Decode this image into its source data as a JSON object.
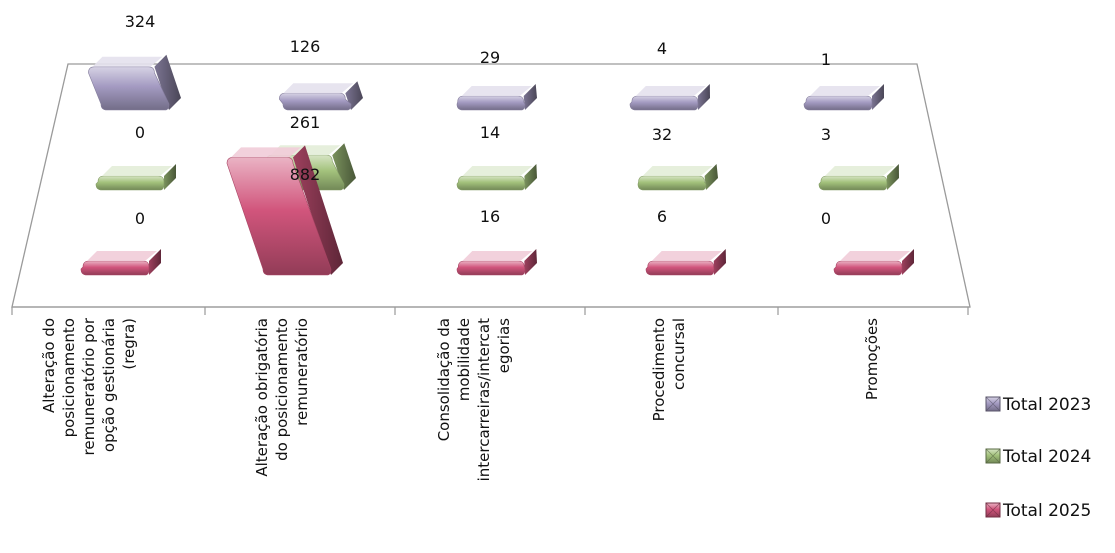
{
  "chart_data": {
    "type": "bar",
    "categories": [
      [
        "Alteração do",
        "posicionamento",
        "remuneratório por",
        "opção gestionária",
        "(regra)"
      ],
      [
        "Alteração obrigatória",
        "do posicionamento",
        "remuneratório"
      ],
      [
        "Consolidação da",
        "mobilidade",
        "intercarreiras/intercat",
        "egorias"
      ],
      [
        "Procedimento",
        "concursal"
      ],
      [
        "Promoções"
      ]
    ],
    "series": [
      {
        "name": "Total 2023",
        "values": [
          324,
          126,
          29,
          4,
          1
        ],
        "color": "#a49bc2"
      },
      {
        "name": "Total 2024",
        "values": [
          0,
          261,
          14,
          32,
          3
        ],
        "color": "#a3c27c"
      },
      {
        "name": "Total 2025",
        "values": [
          0,
          882,
          16,
          6,
          0
        ],
        "color": "#d1557c"
      }
    ],
    "style": "3d-clustered-column",
    "legend": "right"
  }
}
